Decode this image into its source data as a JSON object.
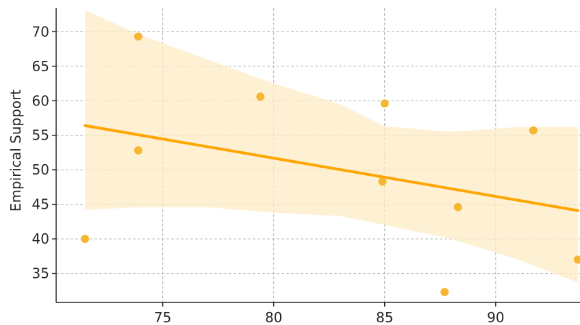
{
  "chart_data": {
    "type": "scatter",
    "ylabel": "Empirical Support",
    "xlim": [
      70.2,
      93.8
    ],
    "ylim": [
      30.8,
      73.4
    ],
    "x_ticks": [
      75,
      80,
      85,
      90
    ],
    "y_ticks": [
      35,
      40,
      45,
      50,
      55,
      60,
      65,
      70
    ],
    "grid": true,
    "colors": {
      "points": "#f5b731",
      "line": "#ffa500",
      "band": "#fdebc4"
    },
    "points": [
      {
        "x": 71.5,
        "y": 40.0
      },
      {
        "x": 73.9,
        "y": 69.3
      },
      {
        "x": 73.9,
        "y": 52.8
      },
      {
        "x": 79.4,
        "y": 60.6
      },
      {
        "x": 85.0,
        "y": 59.6
      },
      {
        "x": 84.9,
        "y": 48.3
      },
      {
        "x": 87.7,
        "y": 32.3
      },
      {
        "x": 88.3,
        "y": 44.6
      },
      {
        "x": 91.7,
        "y": 55.7
      },
      {
        "x": 93.7,
        "y": 37.0
      }
    ],
    "regression": {
      "x": [
        71.5,
        93.7
      ],
      "y": [
        56.4,
        44.1
      ]
    },
    "confidence_band": {
      "x": [
        71.5,
        74.0,
        77.0,
        80.0,
        83.0,
        85.0,
        88.0,
        91.0,
        93.7
      ],
      "upper": [
        73.1,
        69.5,
        66.0,
        62.5,
        59.5,
        56.3,
        55.5,
        56.2,
        56.2
      ],
      "lower": [
        44.2,
        44.6,
        44.6,
        43.8,
        43.3,
        42.0,
        40.0,
        37.0,
        33.7
      ]
    }
  }
}
